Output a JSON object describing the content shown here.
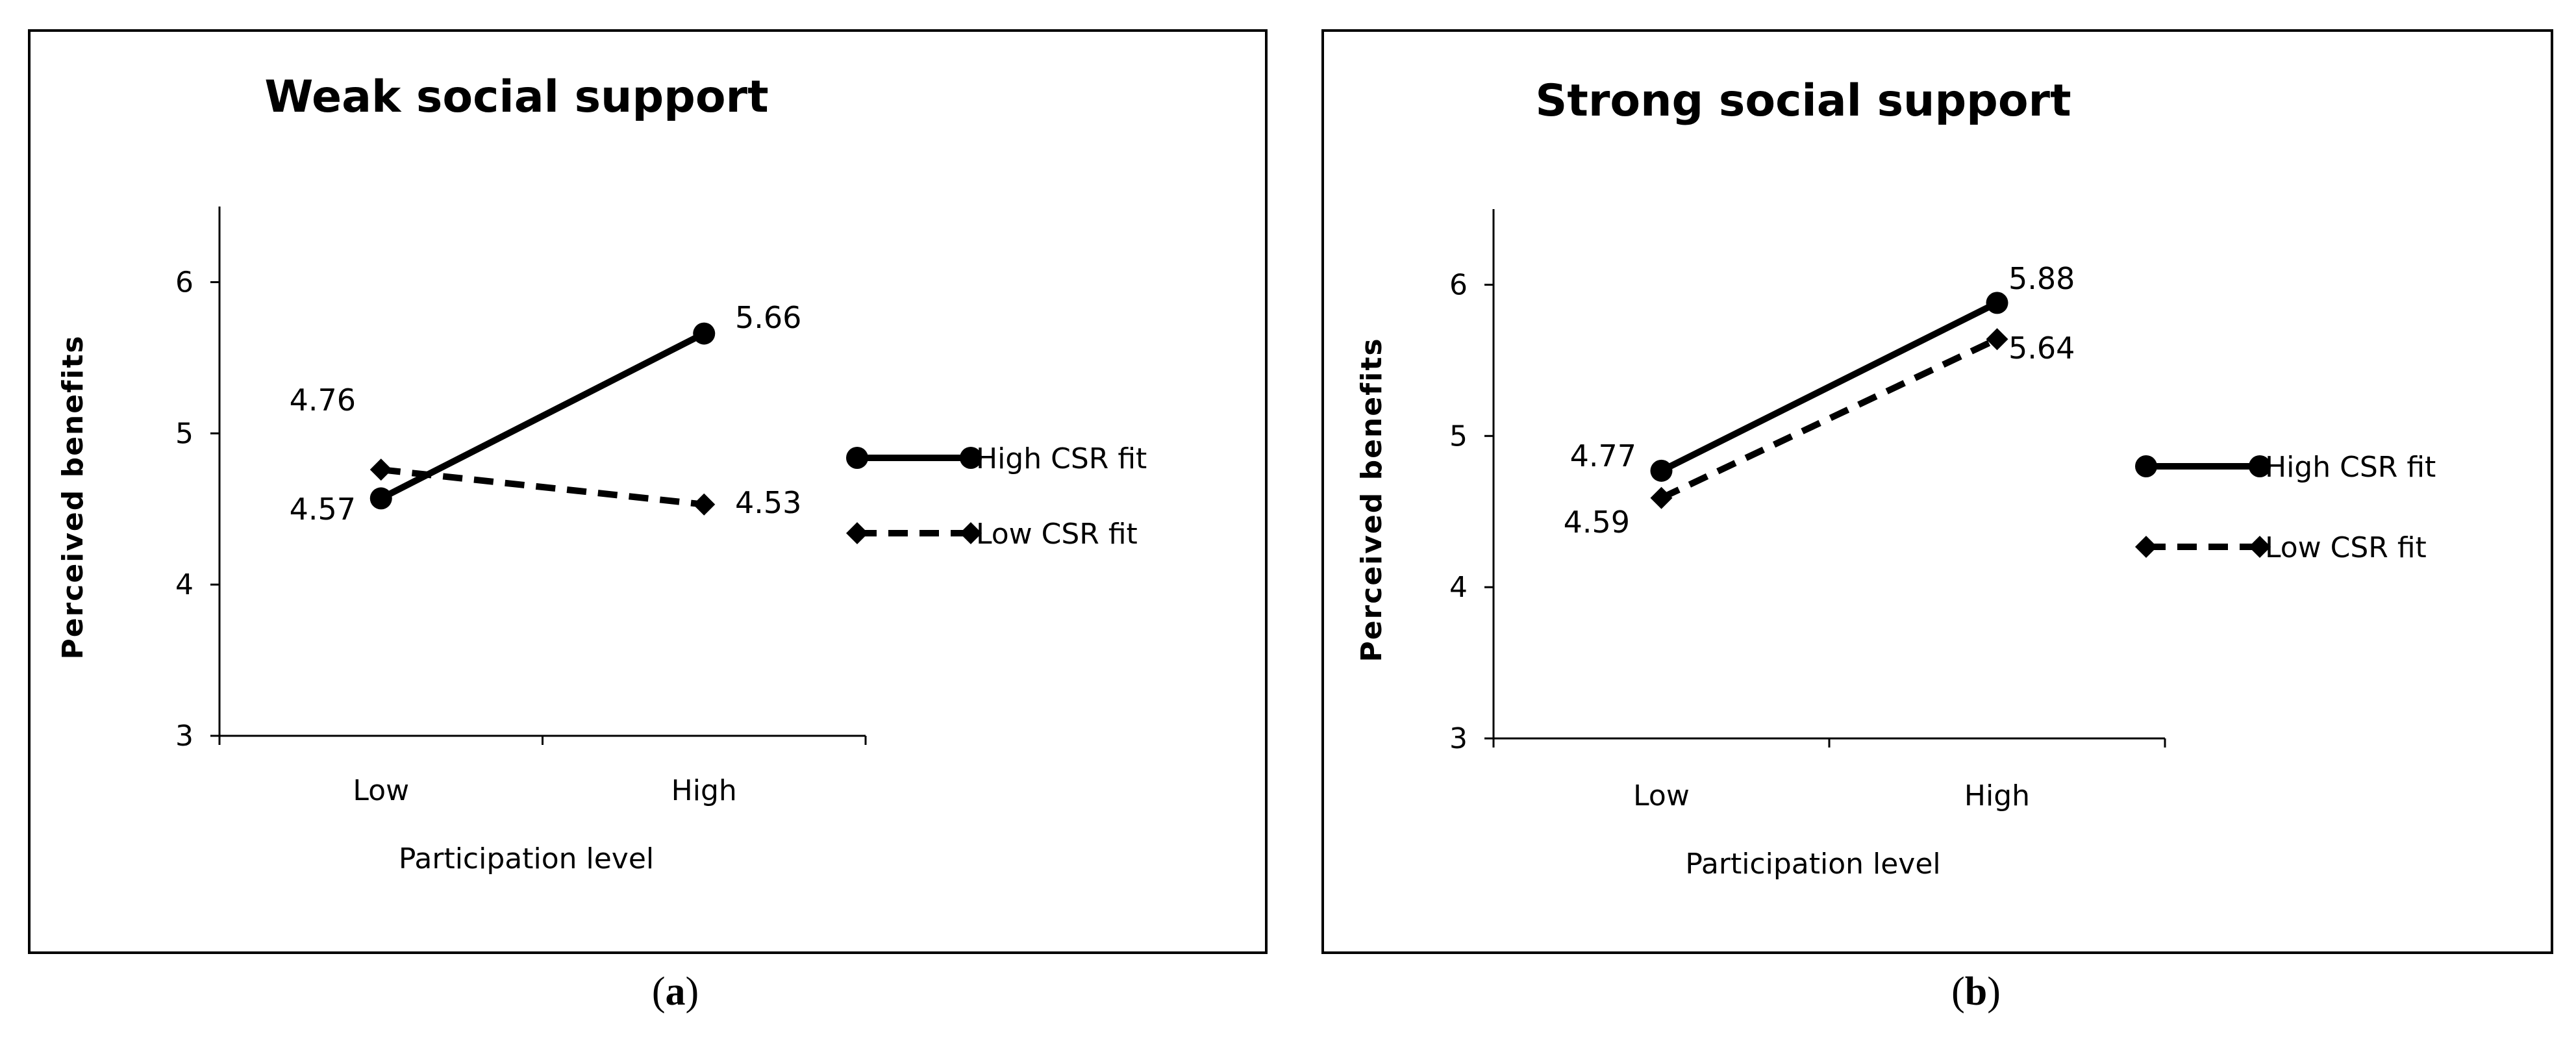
{
  "figure": {
    "colors": {
      "ink": "#000000",
      "background": "#ffffff"
    }
  },
  "chart_data": [
    {
      "type": "line",
      "panel_caption": "(a)",
      "caption_letter": "a",
      "title": "Weak social support",
      "xlabel": "Participation level",
      "ylabel": "Perceived benefits",
      "categories": [
        "Low",
        "High"
      ],
      "ylim": [
        3,
        6.5
      ],
      "yticks": [
        3,
        4,
        5,
        6
      ],
      "grid": false,
      "legend_position": "right",
      "series": [
        {
          "name": "High CSR fit",
          "values": [
            4.57,
            5.66
          ],
          "labels": [
            "4.57",
            "5.66"
          ],
          "line": "solid",
          "marker": "circle"
        },
        {
          "name": "Low CSR fit",
          "values": [
            4.76,
            4.53
          ],
          "labels": [
            "4.76",
            "4.53"
          ],
          "line": "dashed",
          "marker": "diamond"
        }
      ]
    },
    {
      "type": "line",
      "panel_caption": "(b)",
      "caption_letter": "b",
      "title": "Strong social support",
      "xlabel": "Participation level",
      "ylabel": "Perceived benefits",
      "categories": [
        "Low",
        "High"
      ],
      "ylim": [
        3,
        6.5
      ],
      "yticks": [
        3,
        4,
        5,
        6
      ],
      "grid": false,
      "legend_position": "right",
      "series": [
        {
          "name": "High CSR fit",
          "values": [
            4.77,
            5.88
          ],
          "labels": [
            "4.77",
            "5.88"
          ],
          "line": "solid",
          "marker": "circle"
        },
        {
          "name": "Low CSR fit",
          "values": [
            4.59,
            5.64
          ],
          "labels": [
            "4.59",
            "5.64"
          ],
          "line": "dashed",
          "marker": "diamond"
        }
      ]
    }
  ]
}
